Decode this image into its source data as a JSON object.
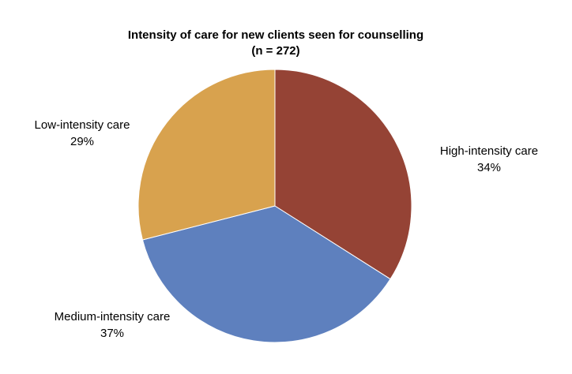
{
  "chart_data": {
    "type": "pie",
    "title": "Intensity of care for new clients seen for counselling",
    "subtitle": "(n = 272)",
    "slices": [
      {
        "label": "High-intensity care",
        "value": 34,
        "value_label": "34%",
        "color": "#954335"
      },
      {
        "label": "Medium-intensity care",
        "value": 37,
        "value_label": "37%",
        "color": "#5E80BE"
      },
      {
        "label": "Low-intensity care",
        "value": 29,
        "value_label": "29%",
        "color": "#D8A24E"
      }
    ]
  }
}
